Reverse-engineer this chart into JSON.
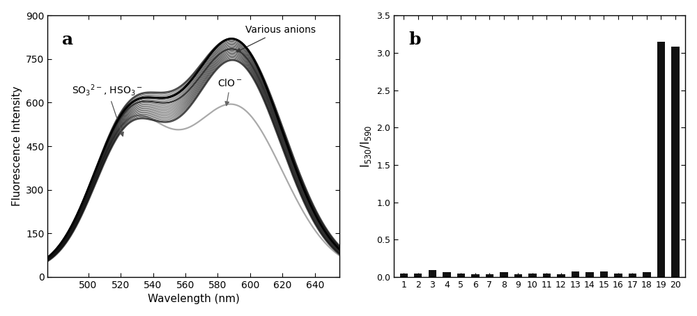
{
  "panel_a": {
    "title": "a",
    "xlabel": "Wavelength (nm)",
    "ylabel": "Fluorescence Intensity",
    "xlim": [
      475,
      655
    ],
    "ylim": [
      0,
      900
    ],
    "yticks": [
      0,
      150,
      300,
      450,
      600,
      750,
      900
    ],
    "xticks": [
      500,
      520,
      540,
      560,
      580,
      600,
      620,
      640
    ],
    "annotation_so3_text": "SO$_3$$^{2-}$, HSO$_3$$^-$",
    "annotation_anions_text": "Various anions",
    "annotation_clo_text": "ClO$^-$",
    "bg_color": "#ffffff",
    "line_color_dark": "#111111",
    "line_color_gray": "#999999"
  },
  "panel_b": {
    "title": "b",
    "ylabel": "I$_{530}$/I$_{590}$",
    "xlim": [
      0.3,
      20.7
    ],
    "ylim": [
      0.0,
      3.5
    ],
    "yticks": [
      0.0,
      0.5,
      1.0,
      1.5,
      2.0,
      2.5,
      3.0,
      3.5
    ],
    "xticks": [
      1,
      2,
      3,
      4,
      5,
      6,
      7,
      8,
      9,
      10,
      11,
      12,
      13,
      14,
      15,
      16,
      17,
      18,
      19,
      20
    ],
    "bar_values": [
      0.05,
      0.05,
      0.09,
      0.06,
      0.05,
      0.04,
      0.04,
      0.06,
      0.04,
      0.05,
      0.05,
      0.04,
      0.07,
      0.06,
      0.07,
      0.05,
      0.05,
      0.06,
      3.15,
      3.08
    ],
    "bar_color": "#111111",
    "bg_color": "#ffffff"
  }
}
